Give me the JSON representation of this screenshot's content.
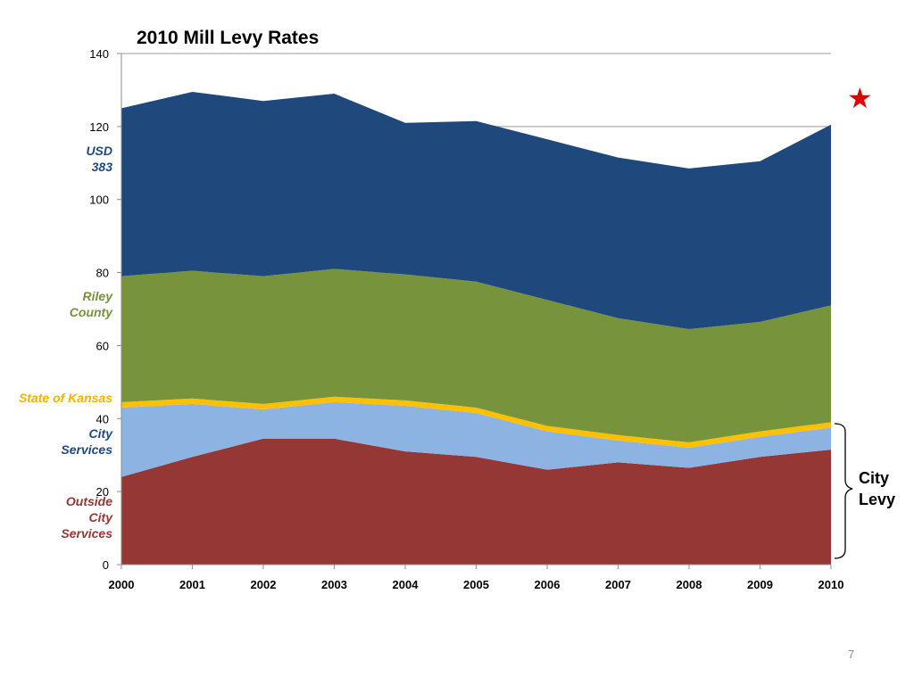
{
  "chart_data": {
    "type": "area",
    "title": "2010 Mill Levy Rates",
    "xlabel": "",
    "ylabel": "",
    "categories": [
      "2000",
      "2001",
      "2002",
      "2003",
      "2004",
      "2005",
      "2006",
      "2007",
      "2008",
      "2009",
      "2010"
    ],
    "ylim": [
      0,
      140
    ],
    "yticks": [
      0,
      20,
      40,
      60,
      80,
      100,
      120,
      140
    ],
    "grid": true,
    "series": [
      {
        "name": "Outside City Services",
        "color": "#953735",
        "values": [
          24,
          29.5,
          34.5,
          34.5,
          31,
          29.5,
          26,
          28,
          26.5,
          29.5,
          31.5
        ]
      },
      {
        "name": "City Services",
        "color": "#8db3e2",
        "values": [
          19,
          14.5,
          8,
          10,
          12.5,
          12,
          10.5,
          6,
          5.5,
          5.5,
          6
        ]
      },
      {
        "name": "State of Kansas",
        "color": "#ffc000",
        "values": [
          1.5,
          1.5,
          1.5,
          1.5,
          1.5,
          1.5,
          1.5,
          1.5,
          1.5,
          1.5,
          1.5
        ]
      },
      {
        "name": "Riley County",
        "color": "#77933c",
        "values": [
          34.5,
          35,
          35,
          35,
          34.5,
          34.5,
          34.5,
          32,
          31,
          30,
          32
        ]
      },
      {
        "name": "USD 383",
        "color": "#1f497d",
        "values": [
          46,
          49,
          48,
          48,
          41.5,
          44,
          44,
          44,
          44,
          44,
          49.5
        ]
      }
    ]
  },
  "labels": {
    "usd": "USD 383",
    "riley": "Riley County",
    "kansas": "State of Kansas",
    "city": "City Services",
    "outside": "Outside City Services",
    "city_levy": "City Levy"
  },
  "marker": {
    "icon": "star-icon",
    "glyph": "★",
    "color": "#e00000"
  },
  "page_number": "7"
}
